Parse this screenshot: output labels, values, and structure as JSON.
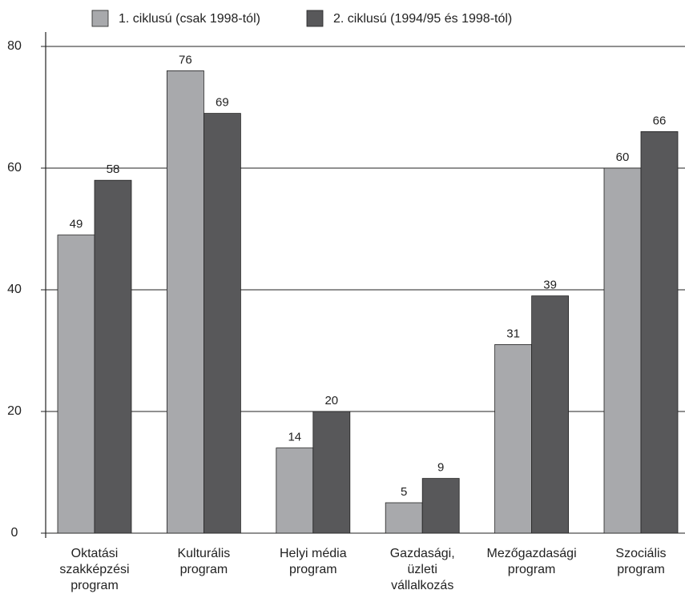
{
  "chart_data": {
    "type": "bar",
    "categories": [
      [
        "Oktatási",
        "szakképzési",
        "program"
      ],
      [
        "Kulturális",
        "program"
      ],
      [
        "Helyi média",
        "program"
      ],
      [
        "Gazdasági,",
        "üzleti",
        "vállalkozás"
      ],
      [
        "Mezőgazdasági",
        "program"
      ],
      [
        "Szociális",
        "program"
      ]
    ],
    "series": [
      {
        "name": "1. ciklusú (csak 1998-tól)",
        "color": "#a8a9ac",
        "values": [
          49,
          76,
          14,
          5,
          31,
          60
        ]
      },
      {
        "name": "2. ciklusú (1994/95 és 1998-tól)",
        "color": "#58585a",
        "values": [
          58,
          69,
          20,
          9,
          39,
          66
        ]
      }
    ],
    "ylim": [
      0,
      80
    ],
    "yticks": [
      0,
      20,
      40,
      60,
      80
    ],
    "grid": true
  }
}
